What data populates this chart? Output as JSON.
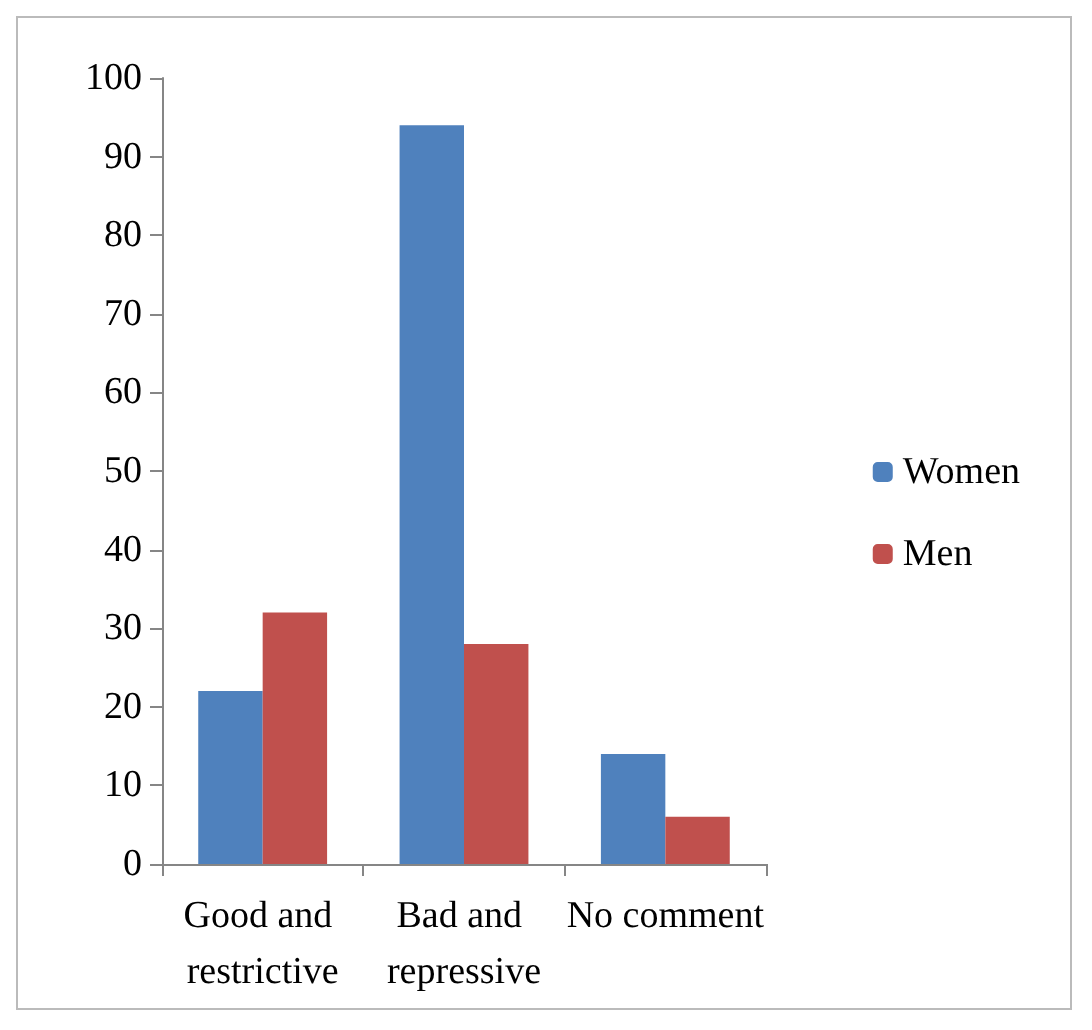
{
  "chart_data": {
    "type": "bar",
    "categories": [
      "Good and restrictive",
      "Bad and repressive",
      "No comment"
    ],
    "series": [
      {
        "name": "Women",
        "color": "#4f81bd",
        "values": [
          22,
          94,
          14
        ]
      },
      {
        "name": "Men",
        "color": "#c0504d",
        "values": [
          32,
          28,
          6
        ]
      }
    ],
    "ylim": [
      0,
      100
    ],
    "yticks": [
      0,
      10,
      20,
      30,
      40,
      50,
      60,
      70,
      80,
      90,
      100
    ],
    "grid": false,
    "legend": "right"
  }
}
